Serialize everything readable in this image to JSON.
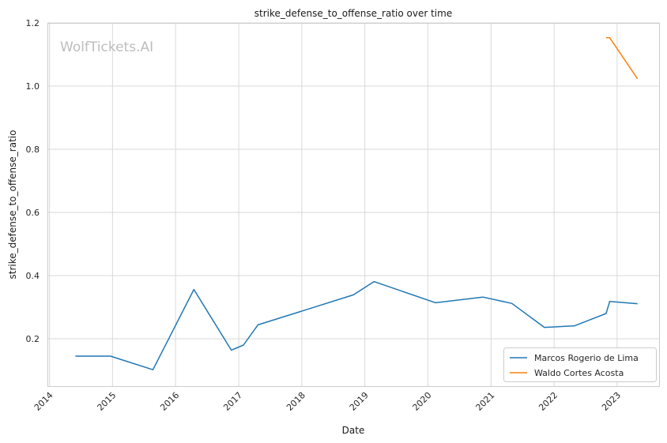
{
  "chart_data": {
    "type": "line",
    "title": "strike_defense_to_offense_ratio over time",
    "xlabel": "Date",
    "ylabel": "strike_defense_to_offense_ratio",
    "xlim": [
      "2013-12-20",
      "2023-09-01"
    ],
    "ylim": [
      0.05,
      1.2
    ],
    "x_ticks": [
      "2014",
      "2015",
      "2016",
      "2017",
      "2018",
      "2019",
      "2020",
      "2021",
      "2022",
      "2023"
    ],
    "y_ticks": [
      "0.2",
      "0.4",
      "0.6",
      "0.8",
      "1.0",
      "1.2"
    ],
    "grid": true,
    "legend_position": "bottom-right",
    "watermark": "WolfTickets.AI",
    "series": [
      {
        "name": "Marcos Rogerio de Lima",
        "color": "#1f77b4",
        "points": [
          {
            "x": "2014-05-31",
            "y": 0.145
          },
          {
            "x": "2014-12-20",
            "y": 0.145
          },
          {
            "x": "2015-08-23",
            "y": 0.102
          },
          {
            "x": "2016-04-16",
            "y": 0.356
          },
          {
            "x": "2016-11-19",
            "y": 0.164
          },
          {
            "x": "2017-01-28",
            "y": 0.18
          },
          {
            "x": "2017-04-22",
            "y": 0.244
          },
          {
            "x": "2018-10-27",
            "y": 0.339
          },
          {
            "x": "2019-02-23",
            "y": 0.381
          },
          {
            "x": "2020-02-15",
            "y": 0.314
          },
          {
            "x": "2020-11-14",
            "y": 0.332
          },
          {
            "x": "2021-05-01",
            "y": 0.312
          },
          {
            "x": "2021-11-06",
            "y": 0.236
          },
          {
            "x": "2022-04-30",
            "y": 0.241
          },
          {
            "x": "2022-10-29",
            "y": 0.28
          },
          {
            "x": "2022-11-19",
            "y": 0.318
          },
          {
            "x": "2023-04-29",
            "y": 0.311
          }
        ]
      },
      {
        "name": "Waldo Cortes Acosta",
        "color": "#ff7f0e",
        "points": [
          {
            "x": "2022-10-29",
            "y": 1.153
          },
          {
            "x": "2022-11-19",
            "y": 1.153
          },
          {
            "x": "2023-04-29",
            "y": 1.023
          }
        ]
      }
    ]
  }
}
